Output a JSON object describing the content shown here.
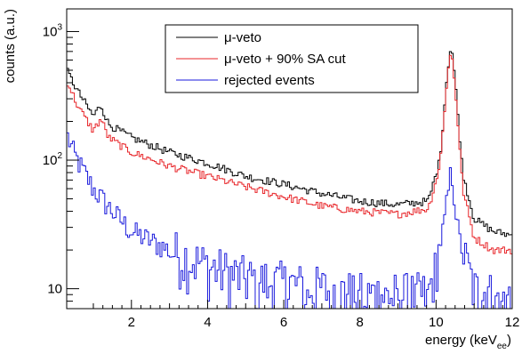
{
  "chart_data": {
    "type": "line",
    "style": "histogram-step",
    "xlabel": "energy (keV",
    "xlabel_sub": "ee",
    "xlabel_close": ")",
    "ylabel": "counts (a.u.)",
    "xlim": [
      0.3,
      12.0
    ],
    "ylim": [
      7,
      1500
    ],
    "yscale": "log",
    "x_ticks": [
      2,
      4,
      6,
      8,
      10,
      12
    ],
    "x_tick_labels": [
      "2",
      "4",
      "6",
      "8",
      "10",
      "12"
    ],
    "y_ticks": [
      10,
      100,
      1000
    ],
    "y_tick_base": "10",
    "y_tick_exponents": [
      "",
      "2",
      "3"
    ],
    "y_tick_plain": [
      "10",
      "",
      ""
    ],
    "legend": {
      "placement": "top-center"
    },
    "bin_width": 0.05,
    "series_overview": [
      {
        "name": "μ-veto",
        "color": "#000000",
        "points": [
          [
            0.3,
            500
          ],
          [
            0.6,
            340
          ],
          [
            1.0,
            220
          ],
          [
            1.2,
            270
          ],
          [
            1.4,
            190
          ],
          [
            2.0,
            150
          ],
          [
            3.0,
            115
          ],
          [
            4.0,
            95
          ],
          [
            5.0,
            75
          ],
          [
            6.0,
            65
          ],
          [
            7.0,
            55
          ],
          [
            8.0,
            48
          ],
          [
            9.0,
            45
          ],
          [
            9.8,
            48
          ],
          [
            10.1,
            100
          ],
          [
            10.3,
            500
          ],
          [
            10.4,
            800
          ],
          [
            10.5,
            420
          ],
          [
            10.7,
            80
          ],
          [
            11.0,
            35
          ],
          [
            11.5,
            28
          ],
          [
            12.0,
            26
          ]
        ]
      },
      {
        "name": "μ-veto + 90% SA cut",
        "color": "#e8262a",
        "points": [
          [
            0.3,
            420
          ],
          [
            0.6,
            260
          ],
          [
            1.0,
            170
          ],
          [
            1.2,
            210
          ],
          [
            1.4,
            150
          ],
          [
            2.0,
            115
          ],
          [
            3.0,
            90
          ],
          [
            4.0,
            75
          ],
          [
            5.0,
            62
          ],
          [
            6.0,
            52
          ],
          [
            7.0,
            44
          ],
          [
            8.0,
            40
          ],
          [
            9.0,
            38
          ],
          [
            9.8,
            42
          ],
          [
            10.1,
            90
          ],
          [
            10.3,
            460
          ],
          [
            10.4,
            720
          ],
          [
            10.5,
            380
          ],
          [
            10.7,
            60
          ],
          [
            11.0,
            25
          ],
          [
            11.5,
            20
          ],
          [
            12.0,
            20
          ]
        ]
      },
      {
        "name": "rejected events",
        "color": "#1a1adc",
        "points": [
          [
            0.3,
            160
          ],
          [
            0.5,
            110
          ],
          [
            1.0,
            60
          ],
          [
            1.5,
            40
          ],
          [
            2.0,
            28
          ],
          [
            3.0,
            20
          ],
          [
            4.0,
            15
          ],
          [
            5.0,
            12
          ],
          [
            6.0,
            11
          ],
          [
            7.0,
            10
          ],
          [
            8.0,
            9
          ],
          [
            9.0,
            9
          ],
          [
            9.8,
            9
          ],
          [
            10.2,
            30
          ],
          [
            10.4,
            85
          ],
          [
            10.6,
            25
          ],
          [
            11.0,
            10
          ],
          [
            12.0,
            8
          ]
        ]
      }
    ]
  }
}
